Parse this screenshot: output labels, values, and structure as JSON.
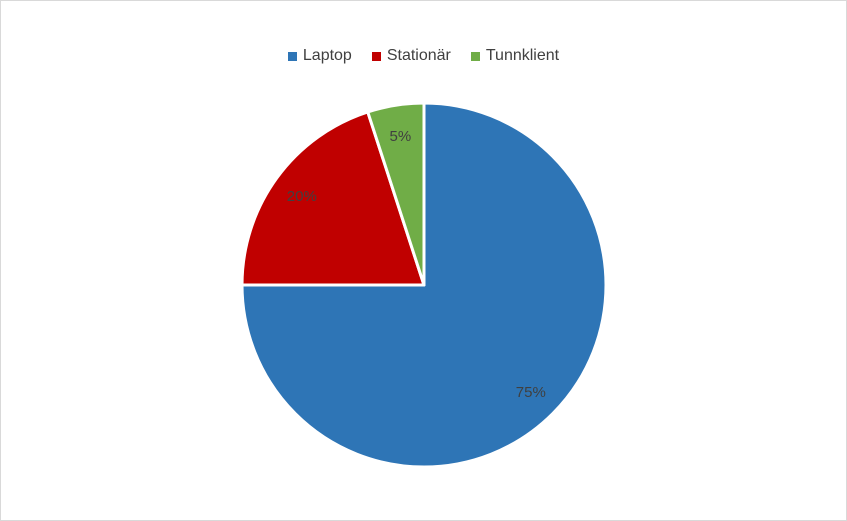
{
  "chart_data": {
    "type": "pie",
    "categories": [
      "Laptop",
      "Stationär",
      "Tunnklient"
    ],
    "values": [
      75,
      20,
      5
    ],
    "data_labels": [
      "75%",
      "20%",
      "5%"
    ],
    "colors": [
      "#2e75b6",
      "#c00000",
      "#70ad47"
    ],
    "legend_position": "top",
    "start_angle": "12 o'clock, clockwise"
  }
}
